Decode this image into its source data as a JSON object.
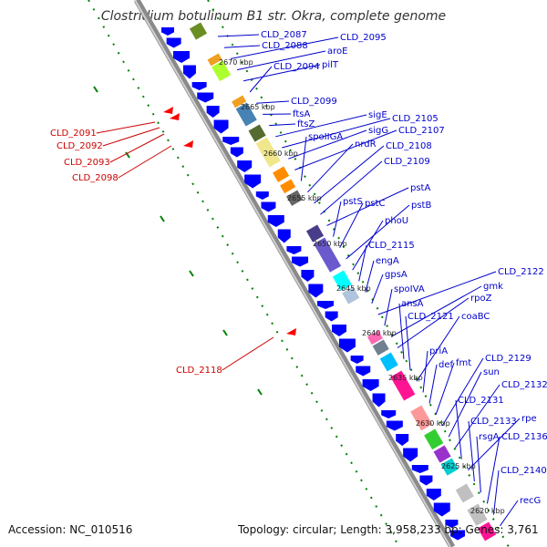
{
  "title": "Clostridium botulinum B1 str. Okra, complete genome",
  "footer": {
    "accession": "Accession: NC_010516",
    "stats": "Topology: circular; Length: 3,958,233 bp; Genes: 3,761"
  },
  "colors": {
    "forward_gene": "#0000ff",
    "reverse_gene": "#ff0000",
    "label_blue": "#0000cc",
    "label_red": "#cc0000",
    "backbone": "#888888",
    "tick_green": "#008000"
  },
  "kbp_ticks": [
    "2670 kbp",
    "2665 kbp",
    "2660 kbp",
    "2655 kbp",
    "2650 kbp",
    "2645 kbp",
    "2640 kbp",
    "2635 kbp",
    "2630 kbp",
    "2625 kbp",
    "2620 kbp"
  ],
  "gene_labels_right": [
    "CLD_2087",
    "CLD_2088",
    "CLD_2095",
    "aroE",
    "pilT",
    "CLD_2094",
    "CLD_2099",
    "ftsA",
    "ftsZ",
    "sigE",
    "CLD_2105",
    "sigG",
    "CLD_2107",
    "spoIIGA",
    "nrdR",
    "CLD_2108",
    "CLD_2109",
    "pstA",
    "pstS",
    "pstC",
    "pstB",
    "phoU",
    "CLD_2115",
    "engA",
    "gpsA",
    "CLD_2122",
    "spoIVA",
    "gmk",
    "rpoZ",
    "ansA",
    "CLD_2121",
    "coaBC",
    "priA",
    "def",
    "fmt",
    "CLD_2129",
    "sun",
    "CLD_2132",
    "CLD_2131",
    "rpe",
    "CLD_2133",
    "rsgA",
    "CLD_2136",
    "CLD_2140",
    "recG"
  ],
  "gene_labels_left": [
    "CLD_2091",
    "CLD_2092",
    "CLD_2093",
    "CLD_2098",
    "CLD_2118"
  ]
}
